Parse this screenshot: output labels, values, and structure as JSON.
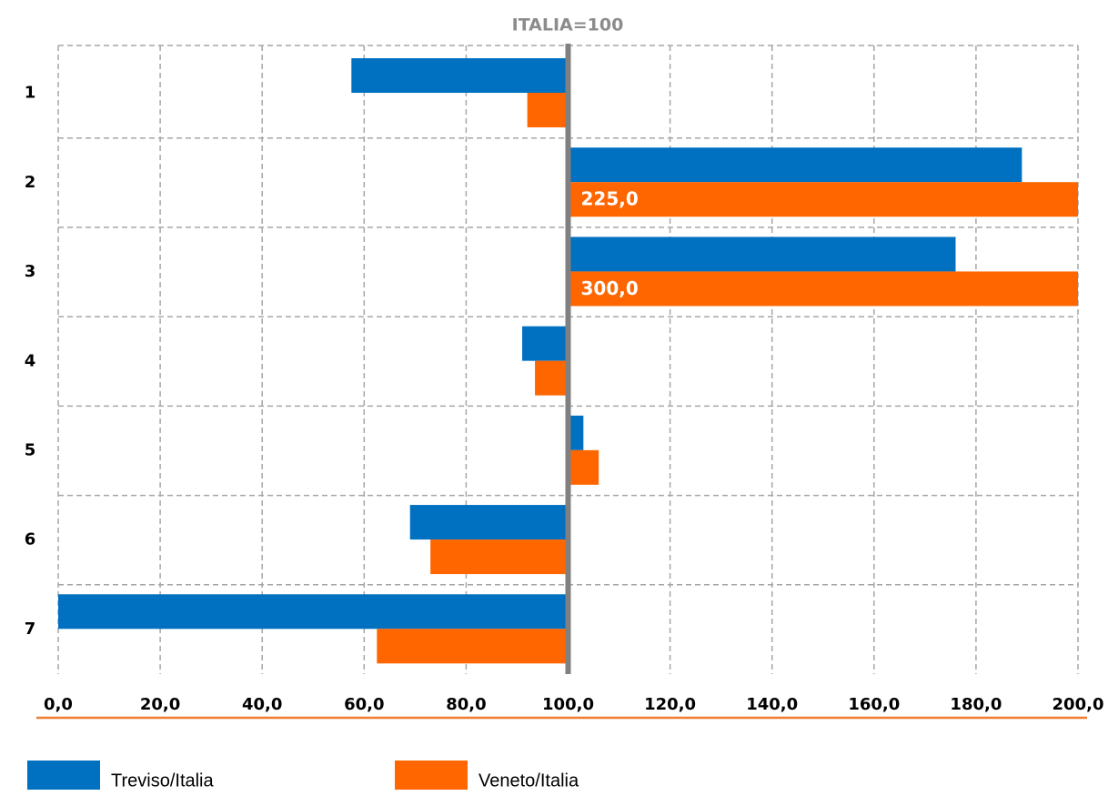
{
  "chart_data": {
    "type": "hbar",
    "title": "ITALIA=100",
    "baseline": 100,
    "categories": [
      "1",
      "2",
      "3",
      "4",
      "5",
      "6",
      "7"
    ],
    "series": [
      {
        "name": "Treviso/Italia",
        "color": "#0070c0",
        "values": [
          57.5,
          189,
          176,
          91,
          103,
          69,
          0
        ]
      },
      {
        "name": "Veneto/Italia",
        "color": "#ff6600",
        "values": [
          92,
          225,
          300,
          93.5,
          106,
          73,
          62.5
        ],
        "value_labels": [
          null,
          "225,0",
          "300,0",
          null,
          null,
          null,
          null
        ]
      }
    ],
    "xlim": [
      0,
      200
    ],
    "xticks": [
      {
        "value": 0,
        "label": "0,0"
      },
      {
        "value": 20,
        "label": "20,0"
      },
      {
        "value": 40,
        "label": "40,0"
      },
      {
        "value": 60,
        "label": "60,0"
      },
      {
        "value": 80,
        "label": "80,0"
      },
      {
        "value": 100,
        "label": "100,0"
      },
      {
        "value": 120,
        "label": "120,0"
      },
      {
        "value": 140,
        "label": "140,0"
      },
      {
        "value": 160,
        "label": "160,0"
      },
      {
        "value": 180,
        "label": "180,0"
      },
      {
        "value": 200,
        "label": "200,0"
      }
    ],
    "grid": true
  }
}
